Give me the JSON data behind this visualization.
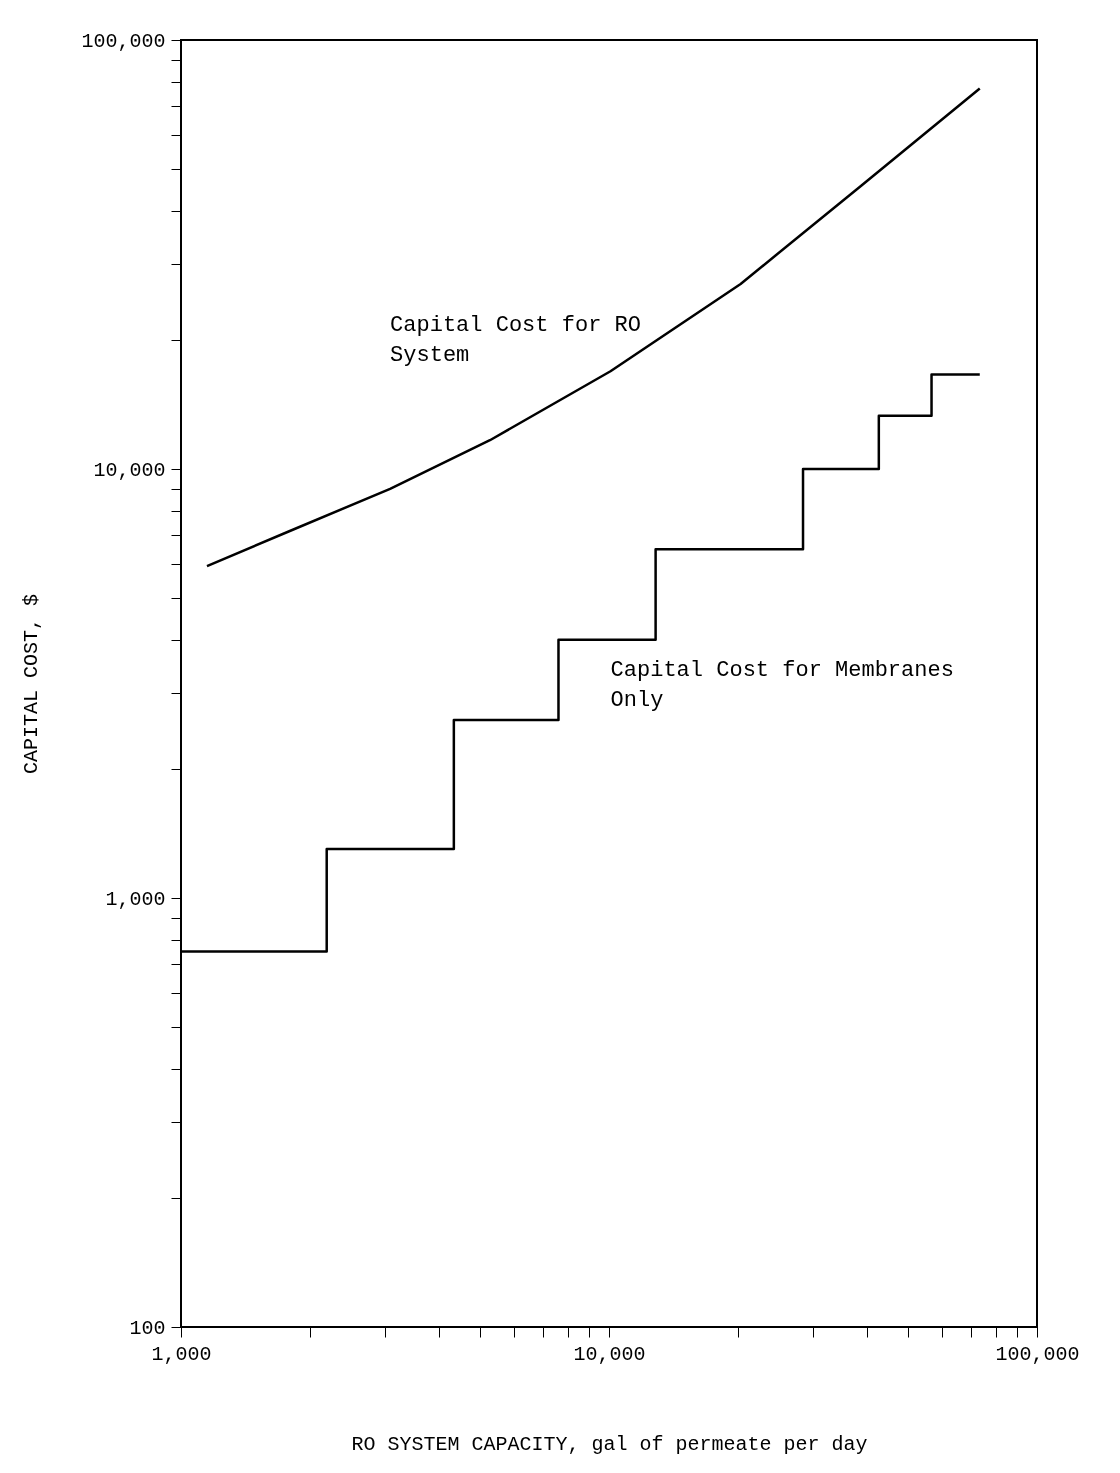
{
  "chart_data": {
    "type": "line",
    "xlabel": "RO SYSTEM CAPACITY, gal of permeate per day",
    "ylabel": "CAPITAL COST, $",
    "log": "xy",
    "grid": false,
    "xlim": [
      1000,
      100000
    ],
    "ylim": [
      100,
      100000
    ],
    "xticks": [
      {
        "value": 1000,
        "label": "1,000"
      },
      {
        "value": 2000,
        "label": null
      },
      {
        "value": 3000,
        "label": null
      },
      {
        "value": 4000,
        "label": null
      },
      {
        "value": 5000,
        "label": null
      },
      {
        "value": 6000,
        "label": null
      },
      {
        "value": 7000,
        "label": null
      },
      {
        "value": 8000,
        "label": null
      },
      {
        "value": 9000,
        "label": null
      },
      {
        "value": 10000,
        "label": "10,000"
      },
      {
        "value": 20000,
        "label": null
      },
      {
        "value": 30000,
        "label": null
      },
      {
        "value": 40000,
        "label": null
      },
      {
        "value": 50000,
        "label": null
      },
      {
        "value": 60000,
        "label": null
      },
      {
        "value": 70000,
        "label": null
      },
      {
        "value": 80000,
        "label": null
      },
      {
        "value": 90000,
        "label": null
      },
      {
        "value": 100000,
        "label": "100,000"
      }
    ],
    "yticks": [
      100,
      {
        "value": 200,
        "label": null
      },
      {
        "value": 300,
        "label": null
      },
      {
        "value": 400,
        "label": null
      },
      {
        "value": 500,
        "label": null
      },
      {
        "value": 600,
        "label": null
      },
      {
        "value": 700,
        "label": null
      },
      {
        "value": 800,
        "label": null
      },
      {
        "value": 900,
        "label": null
      },
      {
        "value": 1000,
        "label": "1,000"
      },
      {
        "value": 2000,
        "label": null
      },
      {
        "value": 3000,
        "label": null
      },
      {
        "value": 4000,
        "label": null
      },
      {
        "value": 5000,
        "label": null
      },
      {
        "value": 6000,
        "label": null
      },
      {
        "value": 7000,
        "label": null
      },
      {
        "value": 8000,
        "label": null
      },
      {
        "value": 9000,
        "label": null
      },
      {
        "value": 10000,
        "label": "10,000"
      },
      {
        "value": 20000,
        "label": null
      },
      {
        "value": 30000,
        "label": null
      },
      {
        "value": 40000,
        "label": null
      },
      {
        "value": 50000,
        "label": null
      },
      {
        "value": 60000,
        "label": null
      },
      {
        "value": 70000,
        "label": null
      },
      {
        "value": 80000,
        "label": null
      },
      {
        "value": 90000,
        "label": null
      },
      {
        "value": 100000,
        "label": "100,000"
      }
    ],
    "series": [
      {
        "name": "Capital Cost for RO System",
        "color": "#000000",
        "x": [
          1150,
          1790,
          3080,
          5270,
          10080,
          20300,
          38900,
          73500
        ],
        "values": [
          5940,
          7160,
          8990,
          11670,
          16900,
          27000,
          45800,
          77100
        ]
      },
      {
        "name": "Capital Cost for Membranes Only",
        "type": "step",
        "color": "#000000",
        "x": [
          1000,
          2190,
          4340,
          7620,
          12850,
          28400,
          42700,
          56700,
          73500
        ],
        "values": [
          750,
          1300,
          2600,
          4000,
          6500,
          10000,
          13300,
          16600,
          16600
        ]
      }
    ]
  }
}
